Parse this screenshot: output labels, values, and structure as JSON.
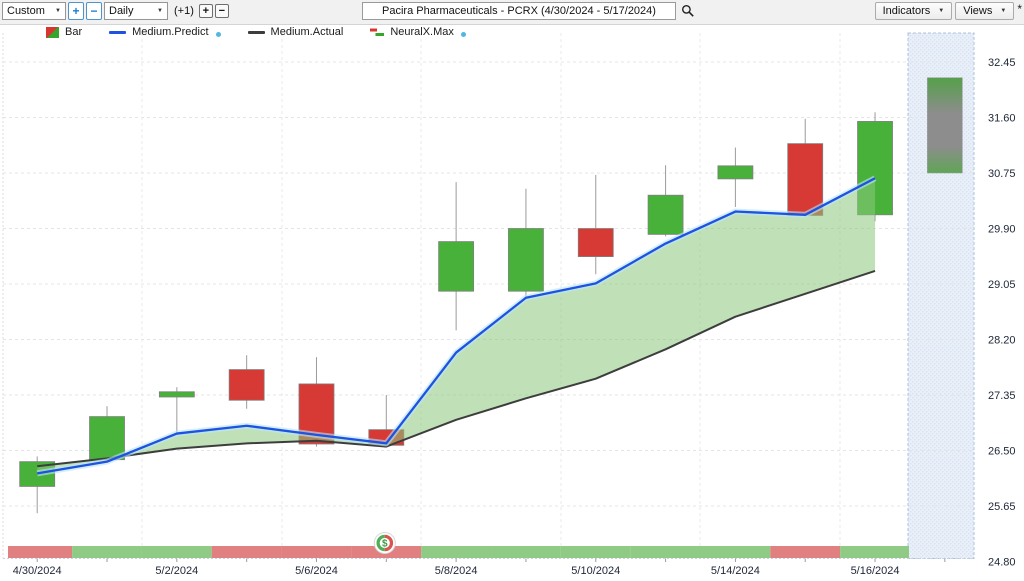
{
  "toolbar": {
    "range_select": "Custom",
    "zoom_in": "+",
    "zoom_out": "−",
    "period_select": "Daily",
    "bars_label": "(+1)",
    "add_bar": "+",
    "remove_bar": "−",
    "symbol_title": "Pacira Pharmaceuticals - PCRX (4/30/2024 - 5/17/2024)",
    "indicators_label": "Indicators",
    "views_label": "Views",
    "asterisk": "*"
  },
  "legend": {
    "items": [
      {
        "label": "Bar",
        "icon": "candlestick-bar-icon"
      },
      {
        "label": "Medium.Predict",
        "icon": "blue-line-icon",
        "has_dot": true
      },
      {
        "label": "Medium.Actual",
        "icon": "dark-line-icon",
        "has_dot": false
      },
      {
        "label": "NeuralX.Max",
        "icon": "step-flag-icon",
        "has_dot": true
      }
    ]
  },
  "chart_data": {
    "type": "candlestick",
    "title": "Pacira Pharmaceuticals - PCRX (4/30/2024 - 5/17/2024)",
    "symbol": "PCRX",
    "ylim": [
      24.8,
      32.45
    ],
    "y_ticks": [
      32.45,
      31.6,
      30.75,
      29.9,
      29.05,
      28.2,
      27.35,
      26.5,
      25.65,
      24.8
    ],
    "grid": true,
    "dates": [
      "4/30/2024",
      "5/1/2024",
      "5/2/2024",
      "5/3/2024",
      "5/6/2024",
      "5/7/2024",
      "5/8/2024",
      "5/9/2024",
      "5/10/2024",
      "5/13/2024",
      "5/14/2024",
      "5/15/2024",
      "5/16/2024"
    ],
    "x_tick_indices": [
      0,
      2,
      4,
      6,
      8,
      10,
      12
    ],
    "x_tick_labels": [
      "4/30/2024",
      "5/2/2024",
      "5/6/2024",
      "5/8/2024",
      "5/10/2024",
      "5/14/2024",
      "5/16/2024"
    ],
    "candles": [
      {
        "date": "4/30/2024",
        "o": 25.95,
        "h": 26.41,
        "l": 25.54,
        "c": 26.33
      },
      {
        "date": "5/1/2024",
        "o": 26.36,
        "h": 27.18,
        "l": 26.33,
        "c": 27.02
      },
      {
        "date": "5/2/2024",
        "o": 27.32,
        "h": 27.47,
        "l": 26.74,
        "c": 27.4
      },
      {
        "date": "5/3/2024",
        "o": 27.74,
        "h": 27.96,
        "l": 27.14,
        "c": 27.27
      },
      {
        "date": "5/6/2024",
        "o": 27.52,
        "h": 27.93,
        "l": 26.56,
        "c": 26.6
      },
      {
        "date": "5/7/2024",
        "o": 26.82,
        "h": 27.35,
        "l": 26.56,
        "c": 26.58
      },
      {
        "date": "5/8/2024",
        "o": 28.94,
        "h": 30.61,
        "l": 28.34,
        "c": 29.7
      },
      {
        "date": "5/9/2024",
        "o": 28.94,
        "h": 30.51,
        "l": 28.85,
        "c": 29.9
      },
      {
        "date": "5/10/2024",
        "o": 29.9,
        "h": 30.72,
        "l": 29.2,
        "c": 29.47
      },
      {
        "date": "5/13/2024",
        "o": 29.81,
        "h": 30.87,
        "l": 29.78,
        "c": 30.41
      },
      {
        "date": "5/14/2024",
        "o": 30.66,
        "h": 31.14,
        "l": 30.23,
        "c": 30.86
      },
      {
        "date": "5/15/2024",
        "o": 31.2,
        "h": 31.58,
        "l": 30.08,
        "c": 30.1
      },
      {
        "date": "5/16/2024",
        "o": 30.11,
        "h": 31.68,
        "l": 30.01,
        "c": 31.54
      }
    ],
    "series": [
      {
        "name": "Medium.Predict",
        "color": "#1f52e0",
        "values": [
          26.15,
          26.33,
          26.76,
          26.88,
          26.74,
          26.61,
          28.0,
          28.84,
          29.06,
          29.67,
          30.16,
          30.11,
          30.67
        ]
      },
      {
        "name": "Medium.Actual",
        "color": "#3d3d3d",
        "values": [
          26.26,
          26.38,
          26.53,
          26.61,
          26.65,
          26.56,
          26.97,
          27.3,
          27.6,
          28.05,
          28.55,
          28.9,
          29.25
        ]
      }
    ],
    "fill_between": {
      "upper": "Medium.Predict",
      "lower": "Medium.Actual",
      "color": "#8cc87b",
      "opacity": 0.55
    },
    "prediction_bar": {
      "name": "NeuralX.Max",
      "slot": 13,
      "low": 30.75,
      "high": 32.21
    },
    "sentiment_strip": [
      "red",
      "green",
      "green",
      "red",
      "red",
      "red",
      "green",
      "green",
      "green",
      "green",
      "green",
      "red",
      "green"
    ],
    "dollar_badge_index": 5,
    "legend_position": "top-left",
    "colors": {
      "up": "#47b13a",
      "down": "#d73a35",
      "strip_red": "#e08080",
      "strip_green": "#8fcb85",
      "predict": "#1f52e0",
      "predict_glow": "#b9e6fb",
      "actual": "#3d3d3d",
      "band": "#8cc87b",
      "future_zone": "#eaf0f9",
      "future_zone_border": "#aec3e0",
      "wick": "#9b9b9b",
      "grid": "#e4e4e4"
    }
  }
}
